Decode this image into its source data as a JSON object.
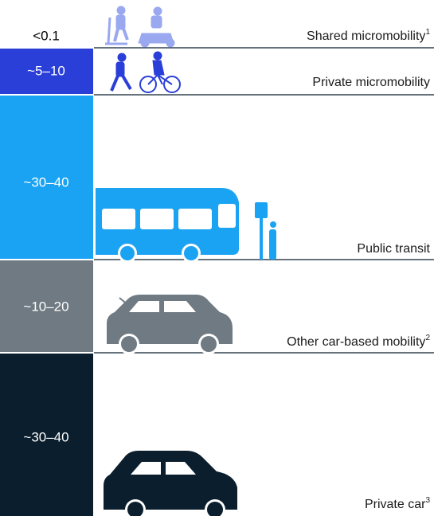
{
  "rows": [
    {
      "share": "<0.1",
      "name": "Shared micromobility",
      "note": "1"
    },
    {
      "share": "~5–10",
      "name": "Private micromobility"
    },
    {
      "share": "~30–40",
      "name": "Public transit"
    },
    {
      "share": "~10–20",
      "name": "Other car-based mobility",
      "note": "2"
    },
    {
      "share": "~30–40",
      "name": "Private car",
      "note": "3"
    }
  ]
}
